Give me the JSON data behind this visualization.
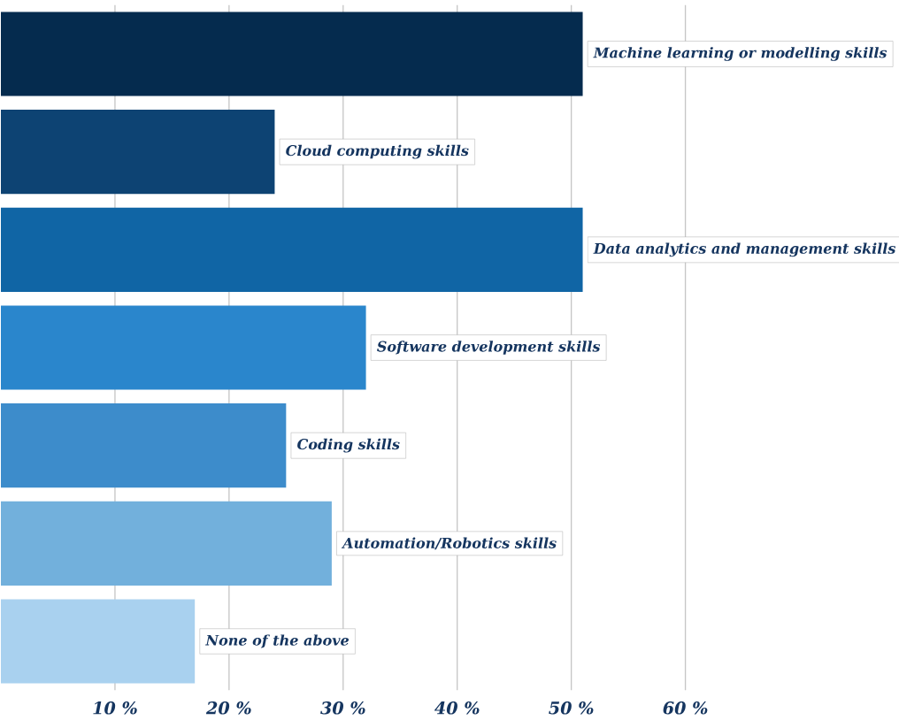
{
  "chart_data": {
    "type": "bar",
    "orientation": "horizontal",
    "categories": [
      "Machine learning or modelling skills",
      "Cloud computing skills",
      "Data analytics and management skills",
      "Software development skills",
      "Coding skills",
      "Automation/Robotics skills",
      "None of the above"
    ],
    "values": [
      51,
      24,
      51,
      32,
      25,
      29,
      17
    ],
    "colors": [
      "#052b4e",
      "#0d4373",
      "#1065a5",
      "#2a86cc",
      "#3d8ccb",
      "#72b0dc",
      "#a9d1ef"
    ],
    "xlim": [
      0,
      78.7
    ],
    "xticks": [
      {
        "value": 10,
        "label": "10 %"
      },
      {
        "value": 20,
        "label": "20 %"
      },
      {
        "value": 30,
        "label": "30 %"
      },
      {
        "value": 40,
        "label": "40 %"
      },
      {
        "value": 50,
        "label": "50 %"
      },
      {
        "value": 60,
        "label": "60 %"
      }
    ],
    "grid": "x"
  }
}
